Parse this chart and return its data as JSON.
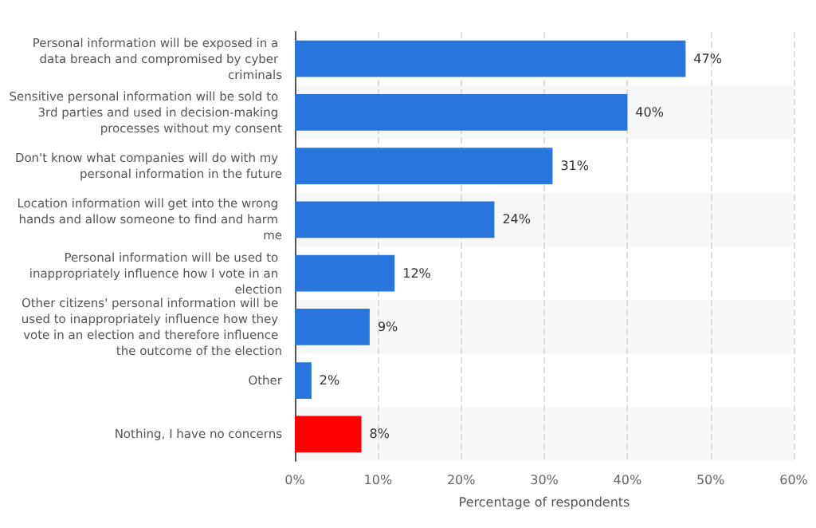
{
  "chart_data": {
    "type": "bar",
    "orientation": "horizontal",
    "xlabel": "Percentage of respondents",
    "categories": [
      "Personal information will be exposed in a data breach and compromised by cyber criminals",
      "Sensitive personal information will be sold to 3rd parties and used in decision-making processes without my consent",
      "Don't know what companies will do with my personal information in the future",
      "Location information will get into the wrong hands and allow someone to find and harm me",
      "Personal information will be used to inappropriately influence how I vote in an election",
      "Other citizens' personal information will be used to inappropriately influence how they vote in an election and therefore influence the outcome of the election",
      "Other",
      "Nothing, I have no concerns"
    ],
    "values": [
      47,
      40,
      31,
      24,
      12,
      9,
      2,
      8
    ],
    "value_labels": [
      "47%",
      "40%",
      "31%",
      "24%",
      "12%",
      "9%",
      "2%",
      "8%"
    ],
    "colors": [
      "#2876dd",
      "#2876dd",
      "#2876dd",
      "#2876dd",
      "#2876dd",
      "#2876dd",
      "#2876dd",
      "#ff0000"
    ],
    "xlim": [
      0,
      60
    ],
    "xticks": [
      {
        "value": 0,
        "label": "0%"
      },
      {
        "value": 10,
        "label": "10%"
      },
      {
        "value": 20,
        "label": "20%"
      },
      {
        "value": 30,
        "label": "30%"
      },
      {
        "value": 40,
        "label": "40%"
      },
      {
        "value": 50,
        "label": "50%"
      },
      {
        "value": 60,
        "label": "60%"
      }
    ],
    "grid": "x"
  }
}
